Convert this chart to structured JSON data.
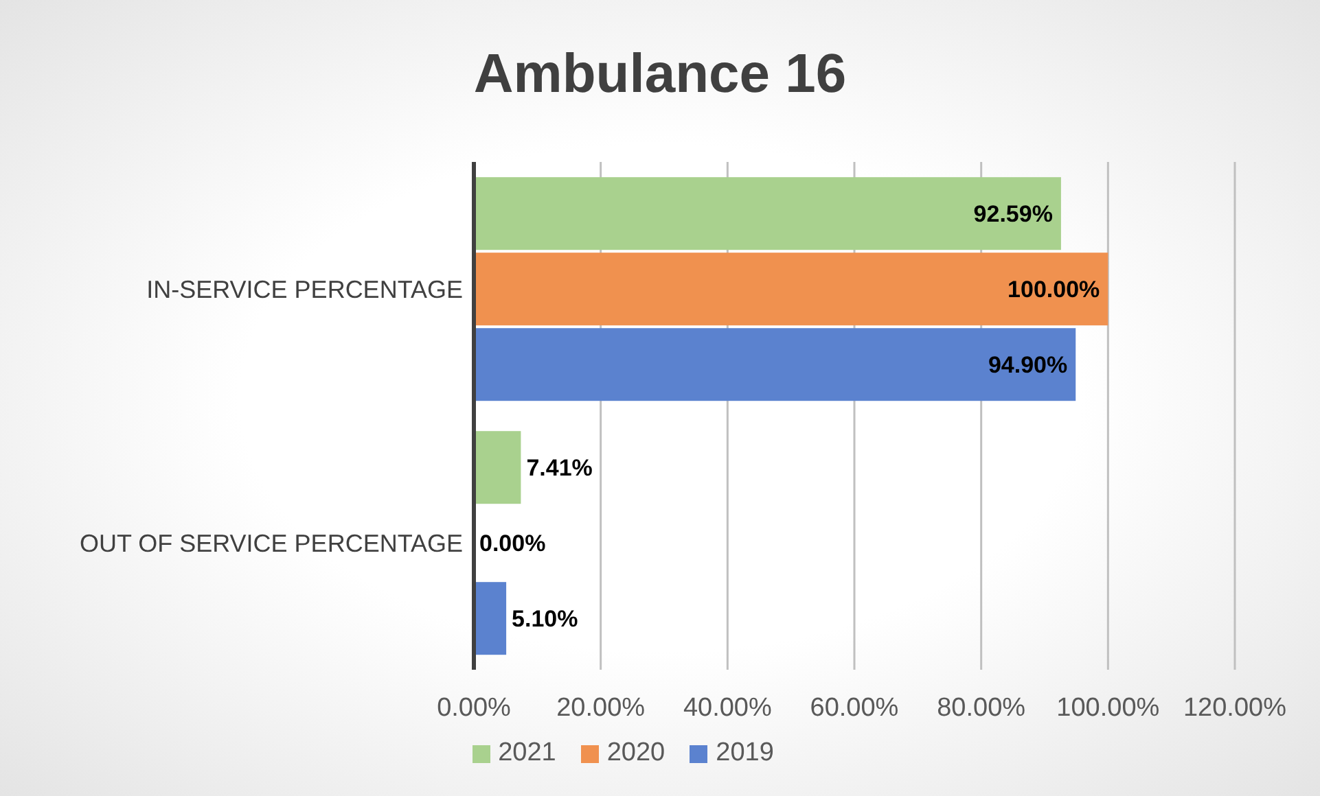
{
  "chart_data": {
    "type": "bar",
    "orientation": "horizontal",
    "title": "Ambulance 16",
    "categories": [
      "IN-SERVICE PERCENTAGE",
      "OUT OF SERVICE PERCENTAGE"
    ],
    "series": [
      {
        "name": "2021",
        "color": "#a9d18e",
        "values": [
          92.59,
          7.41
        ],
        "value_labels": [
          "92.59%",
          "7.41%"
        ]
      },
      {
        "name": "2020",
        "color": "#f0914f",
        "values": [
          100,
          0
        ],
        "value_labels": [
          "100.00%",
          "0.00%"
        ]
      },
      {
        "name": "2019",
        "color": "#5b82cf",
        "values": [
          94.9,
          5.1
        ],
        "value_labels": [
          "94.90%",
          "5.10%"
        ]
      }
    ],
    "xlim": [
      0,
      120
    ],
    "xticks": [
      {
        "value": 0,
        "label": "0.00%"
      },
      {
        "value": 20,
        "label": "20.00%"
      },
      {
        "value": 40,
        "label": "40.00%"
      },
      {
        "value": 60,
        "label": "60.00%"
      },
      {
        "value": 80,
        "label": "80.00%"
      },
      {
        "value": 100,
        "label": "100.00%"
      },
      {
        "value": 120,
        "label": "120.00%"
      }
    ],
    "grid": "x",
    "legend": "bottom"
  }
}
